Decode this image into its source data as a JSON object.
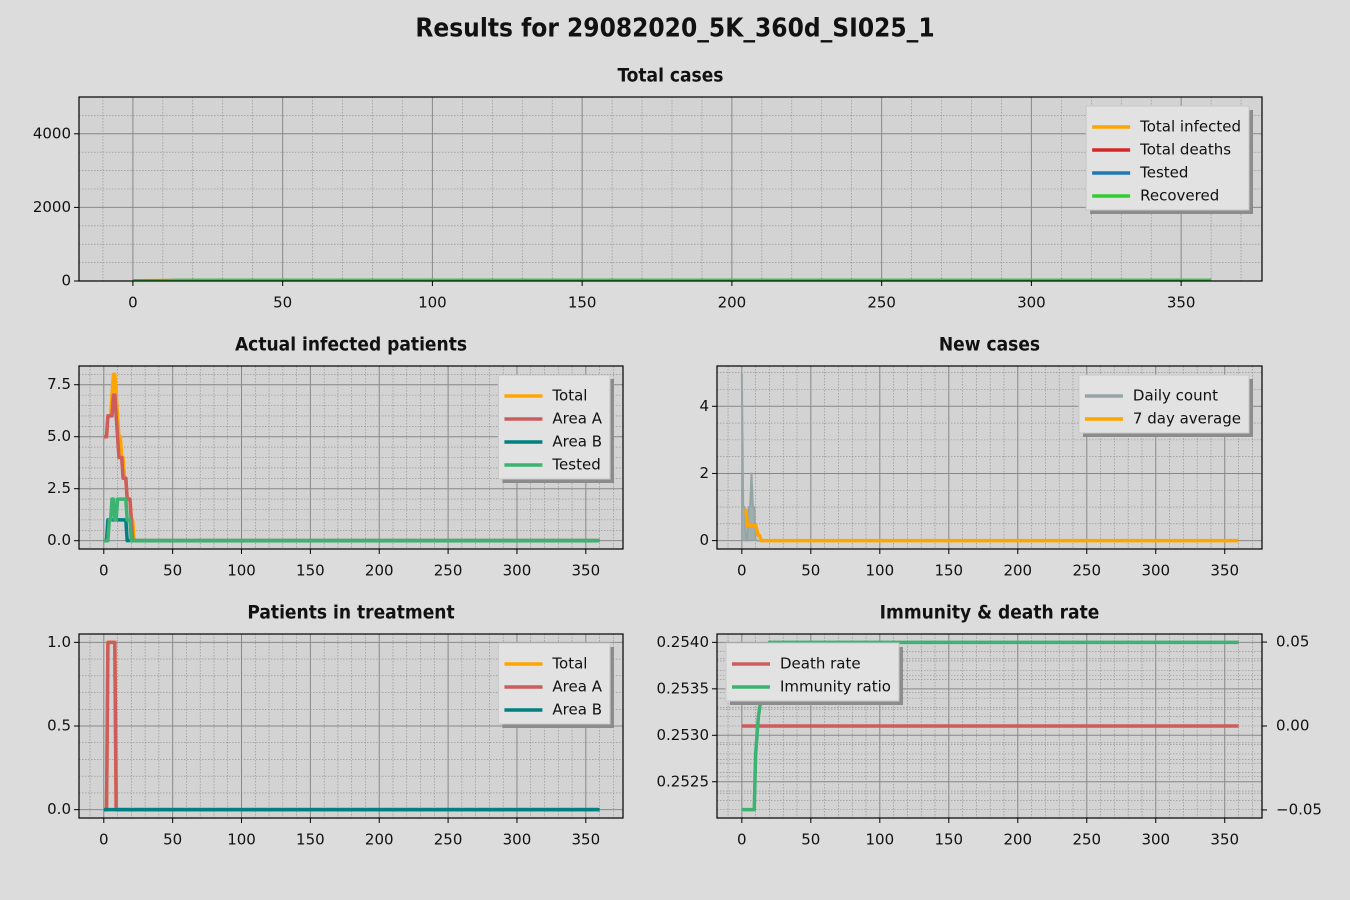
{
  "title": "Results for 29082020_5K_360d_SI025_1",
  "chart_data": [
    {
      "type": "line",
      "title": "Total cases",
      "xlim": [
        -18,
        377
      ],
      "ylim": [
        0,
        5000
      ],
      "xticks": [
        0,
        50,
        100,
        150,
        200,
        250,
        300,
        350
      ],
      "yticks": [
        0,
        2000,
        4000
      ],
      "grid": true,
      "xminor": 5,
      "yminor": 4,
      "legend": "upper right",
      "x": [
        0,
        5,
        10,
        15,
        20,
        25,
        360
      ],
      "series": [
        {
          "name": "Total infected",
          "color": "#ffa500",
          "values": [
            5,
            10,
            12,
            14,
            14,
            14,
            14
          ]
        },
        {
          "name": "Total deaths",
          "color": "#d62728",
          "values": [
            0,
            0,
            0,
            0,
            0,
            0,
            0
          ]
        },
        {
          "name": "Tested",
          "color": "#1f77b4",
          "values": [
            0,
            2,
            8,
            12,
            12,
            12,
            12
          ]
        },
        {
          "name": "Recovered",
          "color": "#32cd32",
          "values": [
            0,
            0,
            2,
            10,
            14,
            14,
            14
          ]
        }
      ]
    },
    {
      "type": "line",
      "title": "Actual infected patients",
      "xlim": [
        -18,
        377
      ],
      "ylim": [
        -0.4,
        8.4
      ],
      "xticks": [
        0,
        50,
        100,
        150,
        200,
        250,
        300,
        350
      ],
      "yticks": [
        {
          "value": 0,
          "label": "0.0"
        },
        2.5,
        {
          "value": 5,
          "label": "5.0"
        },
        7.5
      ],
      "grid": true,
      "xminor": 5,
      "yminor": 5,
      "legend": "upper right",
      "x": [
        0,
        1,
        2,
        3,
        4,
        5,
        6,
        7,
        8,
        9,
        10,
        11,
        12,
        13,
        14,
        15,
        16,
        17,
        18,
        19,
        20,
        21,
        22,
        360
      ],
      "series": [
        {
          "name": "Total",
          "color": "#ffa500",
          "values": [
            5,
            5,
            5,
            6,
            6,
            6,
            7,
            8,
            8,
            7,
            6,
            5,
            5,
            4,
            4,
            3,
            3,
            2,
            2,
            2,
            1,
            1,
            0,
            0
          ]
        },
        {
          "name": "Area A",
          "color": "#cd5c5c",
          "values": [
            5,
            5,
            5,
            6,
            6,
            6,
            6,
            7,
            7,
            6,
            5,
            4,
            4,
            4,
            3,
            3,
            3,
            2,
            2,
            2,
            1,
            0,
            0,
            0
          ]
        },
        {
          "name": "Area B",
          "color": "#008080",
          "values": [
            0,
            0,
            0,
            1,
            1,
            1,
            1,
            1,
            1,
            1,
            1,
            1,
            1,
            1,
            1,
            1,
            1,
            0,
            0,
            0,
            0,
            0,
            0,
            0
          ]
        },
        {
          "name": "Tested",
          "color": "#3cb371",
          "values": [
            0,
            0,
            0,
            0,
            1,
            1,
            2,
            2,
            1,
            1,
            2,
            2,
            2,
            2,
            2,
            2,
            2,
            1,
            1,
            1,
            0,
            0,
            0,
            0
          ]
        }
      ]
    },
    {
      "type": "line",
      "title": "New cases",
      "xlim": [
        -18,
        377
      ],
      "ylim": [
        -0.25,
        5.2
      ],
      "xticks": [
        0,
        50,
        100,
        150,
        200,
        250,
        300,
        350
      ],
      "yticks": [
        0,
        2,
        4
      ],
      "grid": true,
      "xminor": 5,
      "yminor": 4,
      "legend": "upper right",
      "x": [
        0,
        1,
        2,
        3,
        4,
        5,
        6,
        7,
        8,
        9,
        10,
        11,
        12,
        13,
        14,
        15,
        360
      ],
      "series": [
        {
          "name": "Daily count",
          "color": "#95a5a6",
          "fill": true,
          "values": [
            5,
            1,
            1,
            0,
            0,
            1,
            1,
            2,
            1,
            1,
            0,
            0,
            0,
            0,
            0,
            0,
            0
          ]
        },
        {
          "name": "7 day average",
          "color": "#ffa500",
          "values": [
            null,
            null,
            0.9,
            0.9,
            0.45,
            0.45,
            0.45,
            0.45,
            0.45,
            0.45,
            0.45,
            0.3,
            0.15,
            0.15,
            0,
            0,
            0
          ]
        }
      ]
    },
    {
      "type": "line",
      "title": "Patients in treatment",
      "xlim": [
        -18,
        377
      ],
      "ylim": [
        -0.05,
        1.05
      ],
      "xticks": [
        0,
        50,
        100,
        150,
        200,
        250,
        300,
        350
      ],
      "yticks": [
        {
          "value": 0,
          "label": "0.0"
        },
        0.5,
        {
          "value": 1,
          "label": "1.0"
        }
      ],
      "grid": true,
      "xminor": 5,
      "yminor": 5,
      "legend": "upper right",
      "x": [
        0,
        2,
        3,
        8,
        9,
        360
      ],
      "series": [
        {
          "name": "Total",
          "color": "#ffa500",
          "values": [
            0,
            0,
            1,
            1,
            0,
            0
          ]
        },
        {
          "name": "Area A",
          "color": "#cd5c5c",
          "values": [
            0,
            0,
            1,
            1,
            0,
            0
          ]
        },
        {
          "name": "Area B",
          "color": "#008080",
          "values": [
            0,
            0,
            0,
            0,
            0,
            0
          ]
        }
      ]
    },
    {
      "type": "line",
      "title": "Immunity & death rate",
      "xlim": [
        -18,
        377
      ],
      "ylim": [
        0.25211,
        0.25409
      ],
      "y2lim": [
        -0.0548,
        0.0548
      ],
      "xticks": [
        0,
        50,
        100,
        150,
        200,
        250,
        300,
        350
      ],
      "yticks": [
        0.2525,
        {
          "value": 0.253,
          "label": "0.2530"
        },
        0.2535,
        {
          "value": 0.254,
          "label": "0.2540"
        }
      ],
      "y2ticks": [
        {
          "value": -0.05,
          "label": "−0.05"
        },
        {
          "value": 0,
          "label": "0.00"
        },
        0.05
      ],
      "grid": true,
      "xminor": 5,
      "yminor": 5,
      "y2minor": 5,
      "legend": "upper left",
      "x": [
        0,
        9,
        10,
        11,
        12,
        13,
        14,
        15,
        16,
        17,
        18,
        19,
        20,
        360
      ],
      "series": [
        {
          "name": "Death rate",
          "color": "#cd5c5c",
          "axis": "y2",
          "values": [
            0,
            0,
            0,
            0,
            0,
            0,
            0,
            0,
            0,
            0,
            0,
            0,
            0,
            0
          ]
        },
        {
          "name": "Immunity ratio",
          "color": "#3cb371",
          "values": [
            0.2522,
            0.2522,
            0.2528,
            0.253,
            0.2532,
            0.2533,
            0.2534,
            0.2535,
            0.2536,
            0.2537,
            0.2538,
            0.2539,
            0.254,
            0.254
          ]
        }
      ]
    }
  ]
}
